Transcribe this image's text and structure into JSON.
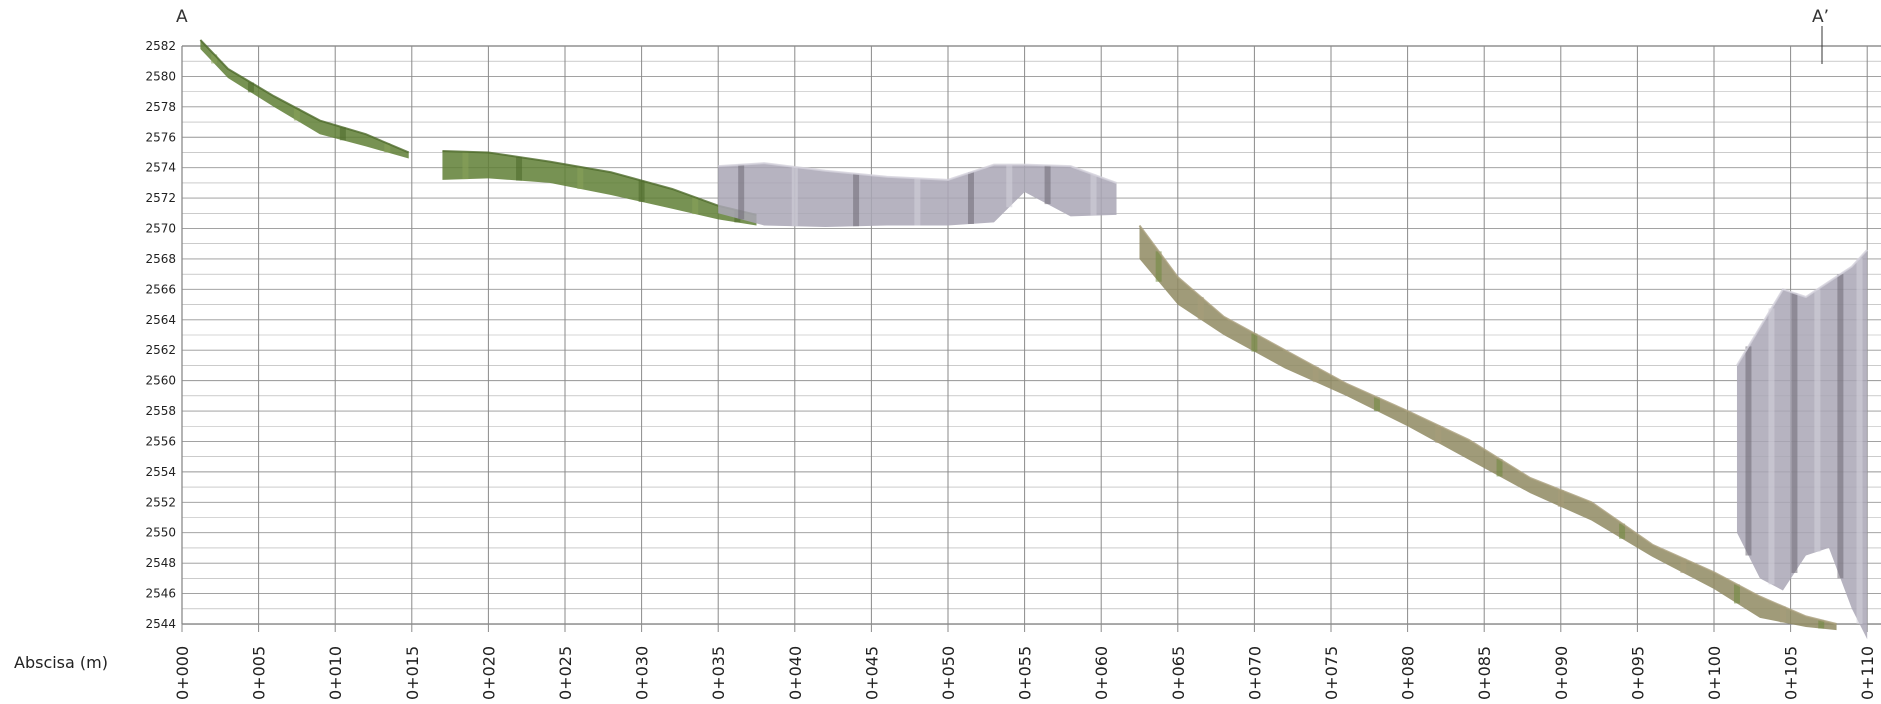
{
  "chart_data": {
    "type": "area",
    "section_start_label": "A",
    "section_end_label": "A’",
    "xlabel": "Abscisa (m)",
    "ylabel": "",
    "y_ticks": [
      2582,
      2580,
      2578,
      2576,
      2574,
      2572,
      2570,
      2568,
      2566,
      2564,
      2562,
      2560,
      2558,
      2556,
      2554,
      2552,
      2550,
      2548,
      2546,
      2544
    ],
    "x_ticks": [
      0,
      5,
      10,
      15,
      20,
      25,
      30,
      35,
      40,
      45,
      50,
      55,
      60,
      65,
      70,
      75,
      80,
      85,
      90,
      95,
      100,
      105,
      110
    ],
    "x_tick_labels": [
      "0+000",
      "0+005",
      "0+010",
      "0+015",
      "0+020",
      "0+025",
      "0+030",
      "0+035",
      "0+040",
      "0+045",
      "0+050",
      "0+055",
      "0+060",
      "0+065",
      "0+070",
      "0+075",
      "0+080",
      "0+085",
      "0+090",
      "0+095",
      "0+100",
      "0+105",
      "0+110"
    ],
    "xlim": [
      0,
      110
    ],
    "ylim": [
      2543.6,
      2582.2
    ],
    "grid": true,
    "colors": {
      "vegetation": "#6f8a3e",
      "soil": "#9c8f6a",
      "structures": "#b9b7c2",
      "grid": "#8a8a8a"
    },
    "terrain_segments": [
      {
        "name": "",
        "x": [
          1.2,
          3,
          6,
          9,
          12,
          14.8
        ],
        "top": [
          2582.4,
          2580.5,
          2578.7,
          2577.1,
          2576.2,
          2575.0
        ],
        "bottom": [
          2581.8,
          2579.9,
          2578.0,
          2576.2,
          2575.4,
          2574.6
        ],
        "color": "vegetation"
      },
      {
        "name": "",
        "x": [
          17,
          20,
          24,
          28,
          32,
          35,
          37.5
        ],
        "top": [
          2575.1,
          2575.0,
          2574.4,
          2573.7,
          2572.6,
          2571.5,
          2570.9
        ],
        "bottom": [
          2573.2,
          2573.3,
          2573.0,
          2572.2,
          2571.3,
          2570.6,
          2570.2
        ],
        "color": "vegetation"
      },
      {
        "name": "",
        "x": [
          35,
          38,
          42,
          46,
          50,
          53,
          55,
          58,
          61
        ],
        "top": [
          2574.1,
          2574.3,
          2573.8,
          2573.4,
          2573.2,
          2574.2,
          2574.2,
          2574.1,
          2573.0
        ],
        "bottom": [
          2571.0,
          2570.2,
          2570.1,
          2570.2,
          2570.2,
          2570.4,
          2572.4,
          2570.8,
          2570.9
        ],
        "color": "structures"
      },
      {
        "name": "",
        "x": [
          62.5,
          65,
          68,
          72,
          76,
          80,
          84,
          88,
          92,
          96,
          100,
          103,
          106,
          108
        ],
        "top": [
          2570.2,
          2566.8,
          2564.2,
          2562.0,
          2559.8,
          2558.0,
          2556.1,
          2553.6,
          2552.0,
          2549.2,
          2547.4,
          2545.8,
          2544.5,
          2544.0
        ],
        "bottom": [
          2568.0,
          2565.0,
          2563.0,
          2560.8,
          2559.0,
          2557.0,
          2554.8,
          2552.6,
          2550.8,
          2548.4,
          2546.3,
          2544.4,
          2543.8,
          2543.6
        ],
        "color": "soil"
      },
      {
        "name": "",
        "x": [
          101.5,
          103,
          104.5,
          106,
          107.5,
          109,
          110
        ],
        "top": [
          2561.0,
          2563.5,
          2566.0,
          2565.5,
          2566.5,
          2567.5,
          2568.6
        ],
        "bottom": [
          2550.0,
          2547.0,
          2546.2,
          2548.5,
          2549.0,
          2545.0,
          2543.0
        ],
        "color": "structures"
      }
    ]
  }
}
